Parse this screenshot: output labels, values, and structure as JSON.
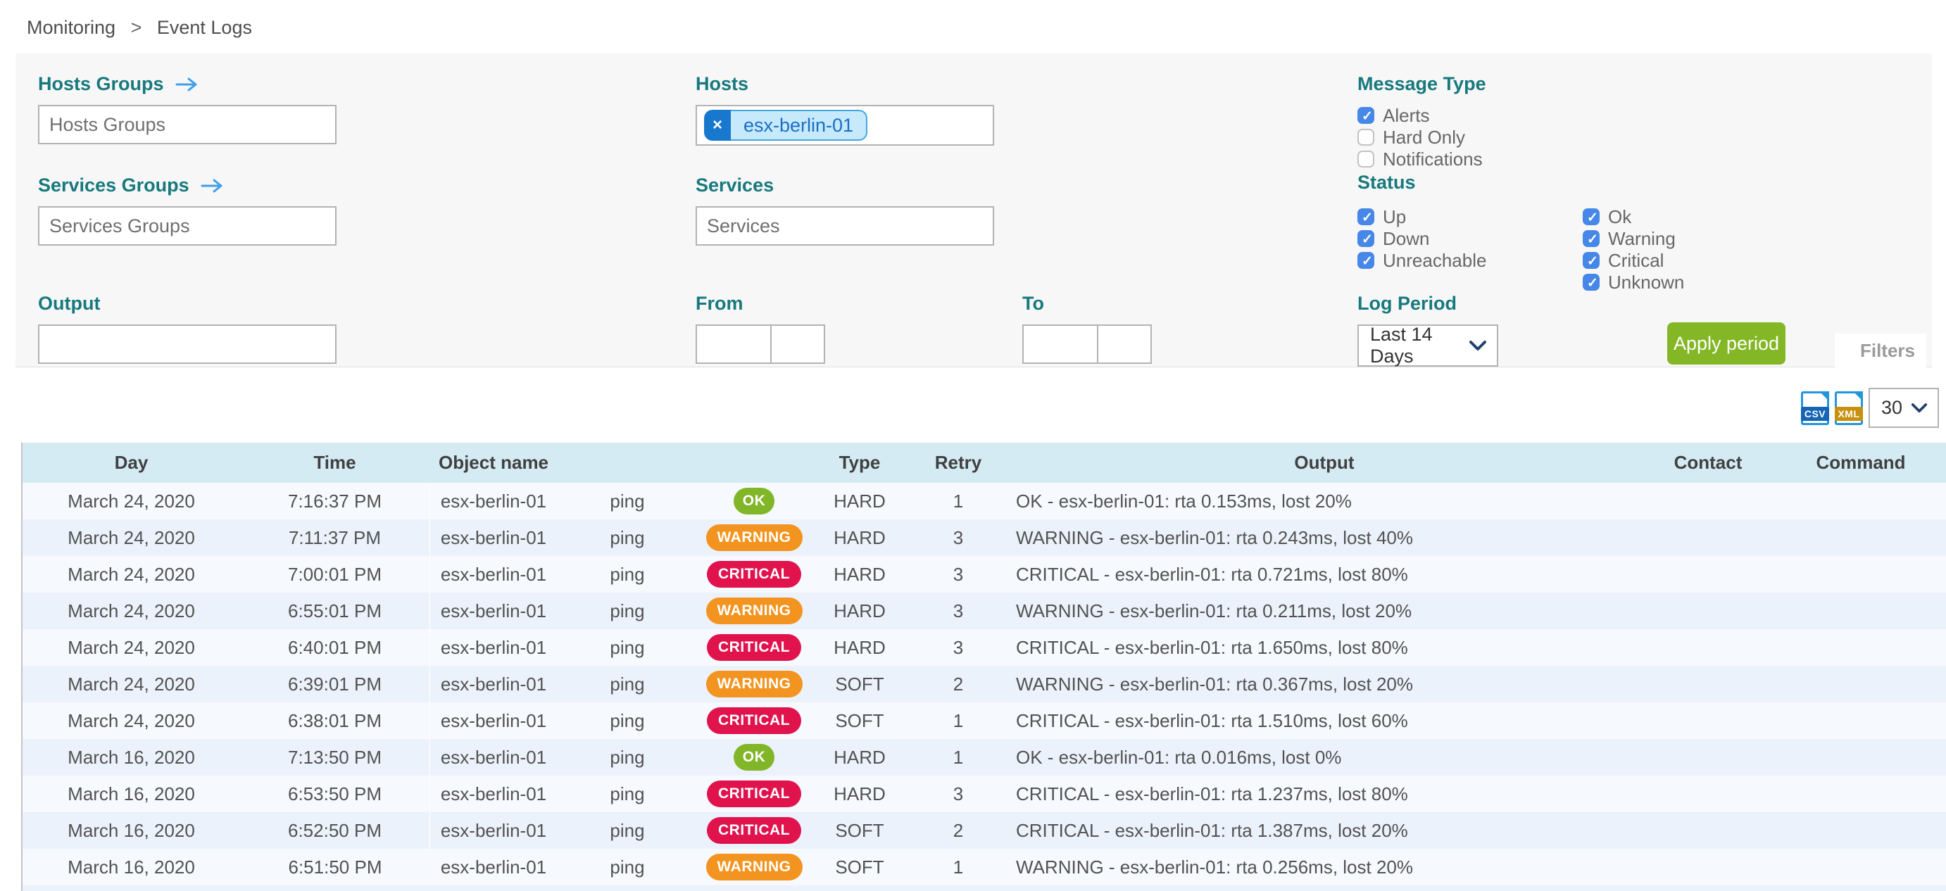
{
  "breadcrumb": {
    "monitoring": "Monitoring",
    "separator": ">",
    "event_logs": "Event Logs"
  },
  "filters": {
    "hosts_groups": {
      "label": "Hosts Groups",
      "placeholder": "Hosts Groups"
    },
    "hosts": {
      "label": "Hosts",
      "chip": "esx-berlin-01",
      "chip_remove": "×"
    },
    "services_groups": {
      "label": "Services Groups",
      "placeholder": "Services Groups"
    },
    "services": {
      "label": "Services",
      "placeholder": "Services"
    },
    "output": {
      "label": "Output",
      "value": ""
    },
    "from": {
      "label": "From",
      "date": "",
      "time": ""
    },
    "to": {
      "label": "To",
      "date": "",
      "time": ""
    },
    "message_type": {
      "label": "Message Type",
      "options": [
        {
          "label": "Alerts",
          "checked": true
        },
        {
          "label": "Hard Only",
          "checked": false
        },
        {
          "label": "Notifications",
          "checked": false
        }
      ]
    },
    "status": {
      "label": "Status",
      "col1": [
        {
          "label": "Up",
          "checked": true
        },
        {
          "label": "Down",
          "checked": true
        },
        {
          "label": "Unreachable",
          "checked": true
        }
      ],
      "col2": [
        {
          "label": "Ok",
          "checked": true
        },
        {
          "label": "Warning",
          "checked": true
        },
        {
          "label": "Critical",
          "checked": true
        },
        {
          "label": "Unknown",
          "checked": true
        }
      ]
    },
    "log_period": {
      "label": "Log Period",
      "selected": "Last 14 Days"
    },
    "apply_button": "Apply period",
    "filters_tab": "Filters"
  },
  "toolbar": {
    "csv_label": "CSV",
    "xml_label": "XML",
    "page_size": "30"
  },
  "table": {
    "columns": [
      "Day",
      "Time",
      "Object name",
      "",
      "",
      "Type",
      "Retry",
      "Output",
      "Contact",
      "Command"
    ],
    "rows": [
      {
        "day": "March 24, 2020",
        "time": "7:16:37 PM",
        "object": "esx-berlin-01",
        "service": "ping",
        "status": "OK",
        "type": "HARD",
        "retry": "1",
        "output": "OK - esx-berlin-01: rta 0.153ms, lost 20%",
        "contact": "",
        "command": ""
      },
      {
        "day": "March 24, 2020",
        "time": "7:11:37 PM",
        "object": "esx-berlin-01",
        "service": "ping",
        "status": "WARNING",
        "type": "HARD",
        "retry": "3",
        "output": "WARNING - esx-berlin-01: rta 0.243ms, lost 40%",
        "contact": "",
        "command": ""
      },
      {
        "day": "March 24, 2020",
        "time": "7:00:01 PM",
        "object": "esx-berlin-01",
        "service": "ping",
        "status": "CRITICAL",
        "type": "HARD",
        "retry": "3",
        "output": "CRITICAL - esx-berlin-01: rta 0.721ms, lost 80%",
        "contact": "",
        "command": ""
      },
      {
        "day": "March 24, 2020",
        "time": "6:55:01 PM",
        "object": "esx-berlin-01",
        "service": "ping",
        "status": "WARNING",
        "type": "HARD",
        "retry": "3",
        "output": "WARNING - esx-berlin-01: rta 0.211ms, lost 20%",
        "contact": "",
        "command": ""
      },
      {
        "day": "March 24, 2020",
        "time": "6:40:01 PM",
        "object": "esx-berlin-01",
        "service": "ping",
        "status": "CRITICAL",
        "type": "HARD",
        "retry": "3",
        "output": "CRITICAL - esx-berlin-01: rta 1.650ms, lost 80%",
        "contact": "",
        "command": ""
      },
      {
        "day": "March 24, 2020",
        "time": "6:39:01 PM",
        "object": "esx-berlin-01",
        "service": "ping",
        "status": "WARNING",
        "type": "SOFT",
        "retry": "2",
        "output": "WARNING - esx-berlin-01: rta 0.367ms, lost 20%",
        "contact": "",
        "command": ""
      },
      {
        "day": "March 24, 2020",
        "time": "6:38:01 PM",
        "object": "esx-berlin-01",
        "service": "ping",
        "status": "CRITICAL",
        "type": "SOFT",
        "retry": "1",
        "output": "CRITICAL - esx-berlin-01: rta 1.510ms, lost 60%",
        "contact": "",
        "command": ""
      },
      {
        "day": "March 16, 2020",
        "time": "7:13:50 PM",
        "object": "esx-berlin-01",
        "service": "ping",
        "status": "OK",
        "type": "HARD",
        "retry": "1",
        "output": "OK - esx-berlin-01: rta 0.016ms, lost 0%",
        "contact": "",
        "command": ""
      },
      {
        "day": "March 16, 2020",
        "time": "6:53:50 PM",
        "object": "esx-berlin-01",
        "service": "ping",
        "status": "CRITICAL",
        "type": "HARD",
        "retry": "3",
        "output": "CRITICAL - esx-berlin-01: rta 1.237ms, lost 80%",
        "contact": "",
        "command": ""
      },
      {
        "day": "March 16, 2020",
        "time": "6:52:50 PM",
        "object": "esx-berlin-01",
        "service": "ping",
        "status": "CRITICAL",
        "type": "SOFT",
        "retry": "2",
        "output": "CRITICAL - esx-berlin-01: rta 1.387ms, lost 20%",
        "contact": "",
        "command": ""
      },
      {
        "day": "March 16, 2020",
        "time": "6:51:50 PM",
        "object": "esx-berlin-01",
        "service": "ping",
        "status": "WARNING",
        "type": "SOFT",
        "retry": "1",
        "output": "WARNING - esx-berlin-01: rta 0.256ms, lost 20%",
        "contact": "",
        "command": ""
      }
    ]
  },
  "colors": {
    "label_teal": "#17797d",
    "checkbox_blue": "#4687e8",
    "apply_green": "#84b726",
    "badge_ok": "#82b629",
    "badge_warning": "#f2941f",
    "badge_critical": "#e0134d",
    "header_blue": "#d5ebf4",
    "chip_blue": "#1878cd",
    "chip_body": "#c6e9fc"
  }
}
